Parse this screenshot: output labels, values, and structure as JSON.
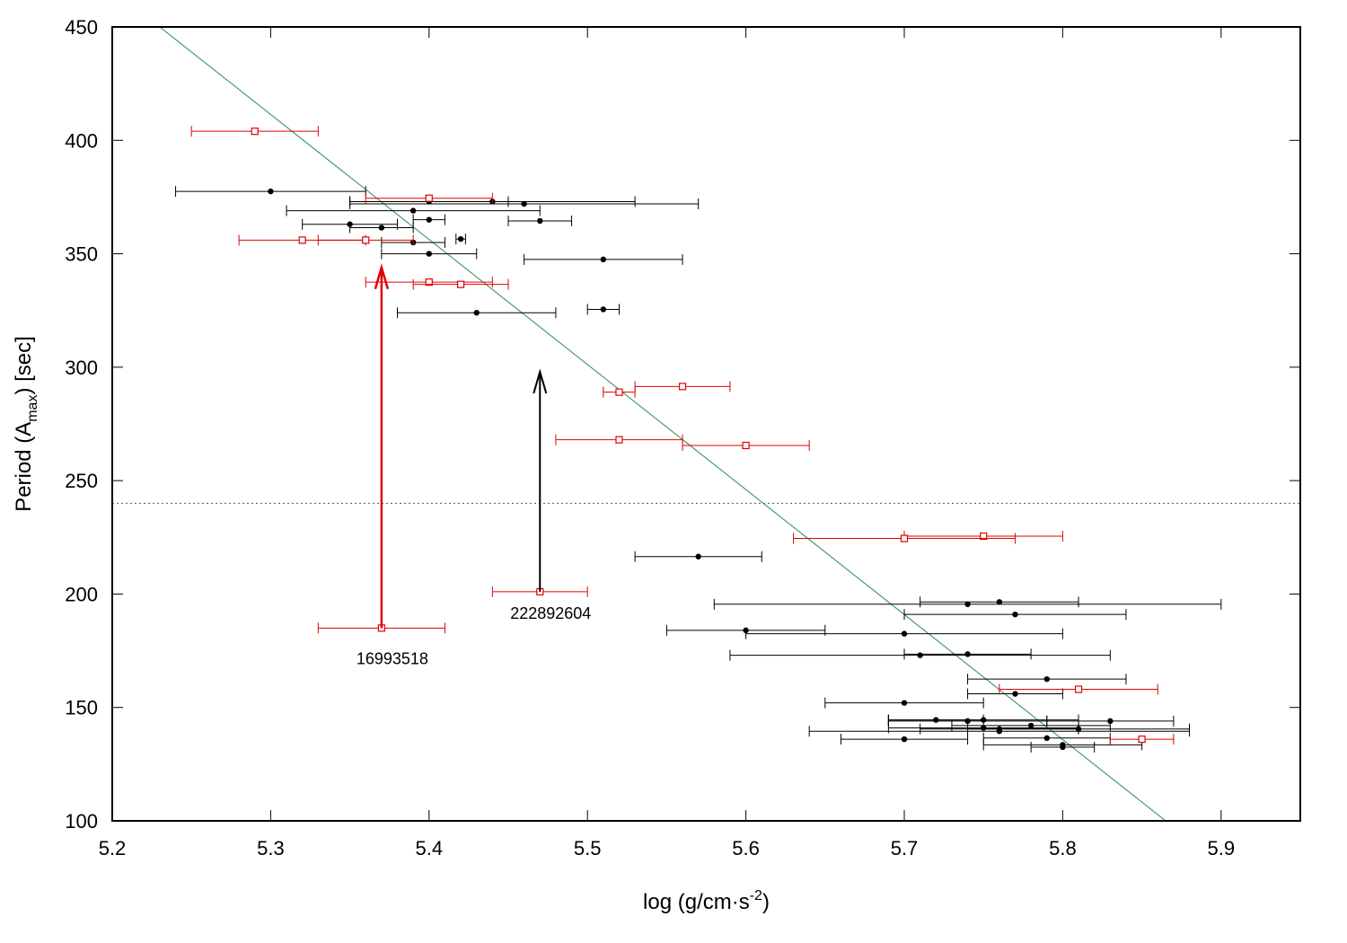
{
  "chart_data": {
    "type": "scatter",
    "xlim": [
      5.2,
      5.95
    ],
    "ylim": [
      100,
      450
    ],
    "xticks": [
      5.2,
      5.3,
      5.4,
      5.5,
      5.6,
      5.7,
      5.8,
      5.9
    ],
    "yticks": [
      100,
      150,
      200,
      250,
      300,
      350,
      400,
      450
    ],
    "xlabel": {
      "main": "log (g/cm·s",
      "sup": "-2",
      "close": ")"
    },
    "ylabel": {
      "main": "Period (A",
      "sub": "max",
      "close": ") [sec]"
    },
    "grid": false,
    "colors": {
      "black": "#000000",
      "red": "#e00000",
      "fit": "#4a9a78",
      "threshold": "#555555"
    },
    "threshold_y": 240,
    "fit_line": {
      "x": [
        5.23,
        5.865
      ],
      "y": [
        450,
        100
      ]
    },
    "series": [
      {
        "marker": "filled-circle",
        "color": "#000000",
        "points": [
          {
            "x": 5.3,
            "y": 377.5,
            "xerr": 0.06
          },
          {
            "x": 5.4,
            "y": 373,
            "xerr": 0.05
          },
          {
            "x": 5.44,
            "y": 373,
            "xerr": 0.09
          },
          {
            "x": 5.46,
            "y": 372,
            "xerr": 0.11
          },
          {
            "x": 5.39,
            "y": 369,
            "xerr": 0.08
          },
          {
            "x": 5.4,
            "y": 365,
            "xerr": 0.01
          },
          {
            "x": 5.47,
            "y": 364.5,
            "xerr": 0.02
          },
          {
            "x": 5.35,
            "y": 363,
            "xerr": 0.03
          },
          {
            "x": 5.37,
            "y": 361.5,
            "xerr": 0.02
          },
          {
            "x": 5.42,
            "y": 356.5,
            "xerr": 0.003
          },
          {
            "x": 5.39,
            "y": 355,
            "xerr": 0.02
          },
          {
            "x": 5.4,
            "y": 350,
            "xerr": 0.03
          },
          {
            "x": 5.51,
            "y": 347.5,
            "xerr": 0.05
          },
          {
            "x": 5.51,
            "y": 325.5,
            "xerr": 0.01
          },
          {
            "x": 5.43,
            "y": 324,
            "xerr": 0.05
          },
          {
            "x": 5.57,
            "y": 216.5,
            "xerr": 0.04
          },
          {
            "x": 5.76,
            "y": 196.5,
            "xerr": 0.05
          },
          {
            "x": 5.74,
            "y": 195.5,
            "xerr": 0.16
          },
          {
            "x": 5.77,
            "y": 191,
            "xerr": 0.07
          },
          {
            "x": 5.6,
            "y": 184,
            "xerr": 0.05
          },
          {
            "x": 5.7,
            "y": 182.5,
            "xerr": 0.1
          },
          {
            "x": 5.74,
            "y": 173.5,
            "xerr": 0.04
          },
          {
            "x": 5.71,
            "y": 173,
            "xerr": 0.12
          },
          {
            "x": 5.79,
            "y": 162.5,
            "xerr": 0.05
          },
          {
            "x": 5.77,
            "y": 156,
            "xerr": 0.03
          },
          {
            "x": 5.7,
            "y": 152,
            "xerr": 0.05
          },
          {
            "x": 5.72,
            "y": 144.5,
            "xerr": 0.03
          },
          {
            "x": 5.74,
            "y": 144,
            "xerr": 0.05
          },
          {
            "x": 5.75,
            "y": 144.5,
            "xerr": 0.06
          },
          {
            "x": 5.83,
            "y": 144,
            "xerr": 0.04
          },
          {
            "x": 5.78,
            "y": 142,
            "xerr": 0.05
          },
          {
            "x": 5.75,
            "y": 141,
            "xerr": 0.06
          },
          {
            "x": 5.76,
            "y": 140.5,
            "xerr": 0.05
          },
          {
            "x": 5.81,
            "y": 140.5,
            "xerr": 0.07
          },
          {
            "x": 5.76,
            "y": 139.5,
            "xerr": 0.12
          },
          {
            "x": 5.79,
            "y": 136.5,
            "xerr": 0.04
          },
          {
            "x": 5.7,
            "y": 136,
            "xerr": 0.04
          },
          {
            "x": 5.8,
            "y": 133.5,
            "xerr": 0.05
          },
          {
            "x": 5.8,
            "y": 132.5,
            "xerr": 0.02
          }
        ]
      },
      {
        "marker": "open-square",
        "color": "#e00000",
        "points": [
          {
            "x": 5.29,
            "y": 404,
            "xerr": 0.04
          },
          {
            "x": 5.4,
            "y": 374.5,
            "xerr": 0.04
          },
          {
            "x": 5.32,
            "y": 356,
            "xerr": 0.04
          },
          {
            "x": 5.36,
            "y": 356,
            "xerr": 0.03
          },
          {
            "x": 5.4,
            "y": 337.5,
            "xerr": 0.04
          },
          {
            "x": 5.42,
            "y": 336.5,
            "xerr": 0.03
          },
          {
            "x": 5.56,
            "y": 291.5,
            "xerr": 0.03
          },
          {
            "x": 5.52,
            "y": 289,
            "xerr": 0.01
          },
          {
            "x": 5.52,
            "y": 268,
            "xerr": 0.04
          },
          {
            "x": 5.6,
            "y": 265.5,
            "xerr": 0.04
          },
          {
            "x": 5.75,
            "y": 225.5,
            "xerr": 0.05
          },
          {
            "x": 5.7,
            "y": 224.5,
            "xerr": 0.07
          },
          {
            "x": 5.47,
            "y": 201,
            "xerr": 0.03
          },
          {
            "x": 5.37,
            "y": 185,
            "xerr": 0.04
          },
          {
            "x": 5.81,
            "y": 158,
            "xerr": 0.05
          },
          {
            "x": 5.85,
            "y": 136,
            "xerr": 0.02
          }
        ]
      }
    ],
    "annotations": [
      {
        "label": "16993518",
        "x": 5.37,
        "from_y": 185,
        "to_y": 344,
        "color": "#e00000",
        "label_y": 169
      },
      {
        "label": "222892604",
        "x": 5.47,
        "from_y": 201,
        "to_y": 298,
        "color": "#000000",
        "label_y": 189
      }
    ]
  }
}
